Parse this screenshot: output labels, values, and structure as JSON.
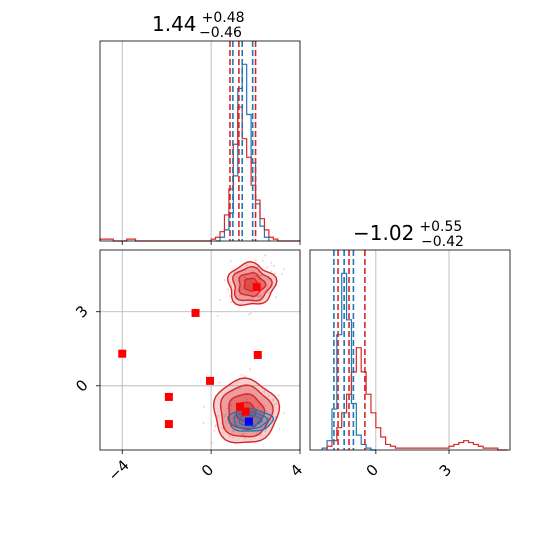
{
  "chart_data": [
    {
      "panel": "marginal-x",
      "type": "histogram",
      "title": {
        "median": "1.44",
        "plus": "+0.48",
        "minus": "−0.46"
      },
      "xlim": [
        -5,
        4
      ],
      "grid": true,
      "series": [
        {
          "color": "#1f77b4",
          "bin_edges": [
            0.2,
            0.4,
            0.6,
            0.8,
            1.0,
            1.2,
            1.4,
            1.6,
            1.8,
            2.0,
            2.2,
            2.4,
            2.6
          ],
          "counts": [
            0.0,
            0.02,
            0.06,
            0.15,
            0.35,
            0.82,
            0.95,
            0.68,
            0.42,
            0.2,
            0.08,
            0.02
          ]
        },
        {
          "color": "#d62728",
          "bin_edges": [
            -5.0,
            -4.8,
            -4.6,
            -4.4,
            -4.2,
            -4.0,
            -3.8,
            -3.6,
            -3.4,
            -3.2,
            -3.0,
            -2.8,
            -2.6,
            -2.4,
            -2.2,
            -2.0,
            -1.8,
            -1.6,
            -1.4,
            -1.2,
            -1.0,
            -0.8,
            -0.6,
            -0.4,
            -0.2,
            0.0,
            0.2,
            0.4,
            0.6,
            0.8,
            1.0,
            1.2,
            1.4,
            1.6,
            1.8,
            2.0,
            2.2,
            2.4,
            2.6,
            2.8,
            3.0,
            3.2,
            3.4,
            3.6,
            3.8,
            4.0
          ],
          "counts": [
            0.01,
            0.01,
            0.01,
            0.0,
            0.0,
            0.0,
            0.01,
            0.01,
            0.0,
            0.0,
            0.0,
            0.0,
            0.0,
            0.0,
            0.0,
            0.0,
            0.0,
            0.0,
            0.0,
            0.0,
            0.0,
            0.0,
            0.0,
            0.0,
            0.0,
            0.01,
            0.02,
            0.05,
            0.14,
            0.28,
            0.52,
            0.72,
            0.55,
            0.45,
            0.3,
            0.22,
            0.12,
            0.06,
            0.02,
            0.01,
            0.0,
            0.0,
            0.0,
            0.0,
            0.0
          ]
        }
      ],
      "quantile_lines": [
        {
          "color": "#1f77b4",
          "values": [
            0.98,
            1.4,
            1.87
          ]
        },
        {
          "color": "#d62728",
          "values": [
            0.85,
            1.25,
            2.0
          ]
        }
      ]
    },
    {
      "panel": "joint",
      "type": "scatter",
      "xlim": [
        -5,
        4
      ],
      "ylim": [
        -2.6,
        5.5
      ],
      "x_ticks": [
        "−4",
        "0",
        "4"
      ],
      "x_tick_values": [
        -4,
        0,
        4
      ],
      "y_ticks": [
        "0",
        "3"
      ],
      "y_tick_values": [
        0,
        3
      ],
      "grid": true,
      "points": [
        {
          "color": "#ff0000",
          "marker": "square",
          "x": -4.0,
          "y": 1.3
        },
        {
          "color": "#ff0000",
          "marker": "square",
          "x": -0.7,
          "y": 2.95
        },
        {
          "color": "#ff0000",
          "marker": "square",
          "x": -1.9,
          "y": -0.45
        },
        {
          "color": "#ff0000",
          "marker": "square",
          "x": -1.9,
          "y": -1.55
        },
        {
          "color": "#ff0000",
          "marker": "square",
          "x": -0.05,
          "y": 0.2
        },
        {
          "color": "#ff0000",
          "marker": "square",
          "x": 2.1,
          "y": 1.25
        },
        {
          "color": "#ff0000",
          "marker": "square",
          "x": 2.05,
          "y": 4.0
        },
        {
          "color": "#ff0000",
          "marker": "square",
          "x": 1.3,
          "y": -0.85
        },
        {
          "color": "#ff0000",
          "marker": "square",
          "x": 1.55,
          "y": -1.05
        },
        {
          "color": "#0000ff",
          "marker": "square",
          "x": 1.7,
          "y": -1.45
        }
      ],
      "contours": [
        {
          "color": "#d62728",
          "center": [
            1.8,
            4.1
          ],
          "spread": [
            1.05,
            0.85
          ]
        },
        {
          "color": "#d62728",
          "center": [
            1.55,
            -1.05
          ],
          "spread": [
            1.45,
            1.3
          ]
        },
        {
          "color": "#1f77b4",
          "center": [
            1.75,
            -1.4
          ],
          "spread": [
            1.0,
            0.45
          ]
        }
      ]
    },
    {
      "panel": "marginal-y",
      "type": "histogram",
      "title": {
        "median": "−1.02",
        "plus": "+0.55",
        "minus": "−0.42"
      },
      "xlim": [
        -2.7,
        5.5
      ],
      "x_ticks": [
        "0",
        "3"
      ],
      "x_tick_values": [
        0,
        3
      ],
      "grid": true,
      "series": [
        {
          "color": "#1f77b4",
          "bin_edges": [
            -2.2,
            -2.0,
            -1.8,
            -1.6,
            -1.4,
            -1.2,
            -1.0,
            -0.8,
            -0.6,
            -0.4,
            -0.2,
            0.0
          ],
          "counts": [
            0.01,
            0.05,
            0.22,
            0.62,
            0.95,
            0.7,
            0.25,
            0.08,
            0.03,
            0.01,
            0.0
          ]
        },
        {
          "color": "#d62728",
          "bin_edges": [
            -2.0,
            -1.8,
            -1.6,
            -1.4,
            -1.2,
            -1.0,
            -0.8,
            -0.6,
            -0.4,
            -0.2,
            0.0,
            0.2,
            0.4,
            0.6,
            0.8,
            1.0,
            1.2,
            1.4,
            1.6,
            1.8,
            2.0,
            2.2,
            2.4,
            2.6,
            2.8,
            3.0,
            3.2,
            3.4,
            3.6,
            3.8,
            4.0,
            4.2,
            4.4,
            4.6,
            4.8,
            5.0,
            5.2,
            5.4
          ],
          "counts": [
            0.02,
            0.05,
            0.12,
            0.2,
            0.3,
            0.42,
            0.55,
            0.42,
            0.3,
            0.2,
            0.12,
            0.07,
            0.03,
            0.02,
            0.01,
            0.01,
            0.01,
            0.01,
            0.01,
            0.01,
            0.01,
            0.01,
            0.01,
            0.01,
            0.01,
            0.02,
            0.03,
            0.04,
            0.05,
            0.04,
            0.03,
            0.02,
            0.01,
            0.01,
            0.01,
            0.0,
            0.0
          ]
        }
      ],
      "quantile_lines": [
        {
          "color": "#1f77b4",
          "values": [
            -1.72,
            -1.3,
            -0.92
          ]
        },
        {
          "color": "#d62728",
          "values": [
            -1.55,
            -1.1,
            -0.45
          ]
        }
      ]
    }
  ]
}
